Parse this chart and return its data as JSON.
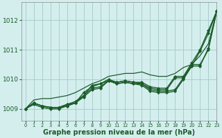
{
  "bg_color": "#d4eeee",
  "grid_color": "#aacccc",
  "line_color": "#1a5c28",
  "marker_color": "#1a5c28",
  "xlabel": "Graphe pression niveau de la mer (hPa)",
  "xlabel_fontsize": 7.0,
  "xlim": [
    -0.5,
    23
  ],
  "ylim": [
    1008.6,
    1012.6
  ],
  "yticks": [
    1009,
    1010,
    1011,
    1012
  ],
  "xticks": [
    0,
    1,
    2,
    3,
    4,
    5,
    6,
    7,
    8,
    9,
    10,
    11,
    12,
    13,
    14,
    15,
    16,
    17,
    18,
    19,
    20,
    21,
    22,
    23
  ],
  "series": [
    {
      "y": [
        1009.0,
        1009.2,
        1009.1,
        1009.05,
        1009.05,
        1009.1,
        1009.2,
        1009.55,
        1009.75,
        1009.85,
        1009.95,
        1009.85,
        1009.9,
        1009.85,
        1009.85,
        1009.65,
        1009.6,
        1009.6,
        1009.65,
        1010.05,
        1010.45,
        1010.95,
        1011.55,
        1012.3
      ],
      "has_markers": true,
      "lw": 1.0
    },
    {
      "y": [
        1009.0,
        1009.15,
        1009.05,
        1009.0,
        1009.0,
        1009.1,
        1009.2,
        1009.4,
        1009.65,
        1009.7,
        1009.95,
        1009.85,
        1009.9,
        1009.85,
        1009.8,
        1009.6,
        1009.55,
        1009.55,
        1009.6,
        1010.0,
        1010.45,
        1010.45,
        1011.05,
        1012.3
      ],
      "has_markers": true,
      "lw": 1.0
    },
    {
      "y": [
        1009.0,
        1009.2,
        1009.1,
        1009.05,
        1009.05,
        1009.15,
        1009.2,
        1009.45,
        1009.8,
        1009.85,
        1010.0,
        1009.9,
        1009.95,
        1009.9,
        1009.85,
        1009.7,
        1009.65,
        1009.65,
        1010.05,
        1010.05,
        1010.5,
        1010.5,
        1011.0,
        1012.3
      ],
      "has_markers": true,
      "lw": 1.0
    },
    {
      "y": [
        1009.0,
        1009.2,
        1009.1,
        1009.05,
        1009.05,
        1009.15,
        1009.25,
        1009.45,
        1009.7,
        1009.75,
        1009.95,
        1009.9,
        1009.95,
        1009.9,
        1009.9,
        1009.75,
        1009.7,
        1009.7,
        1010.1,
        1010.1,
        1010.55,
        1011.0,
        1011.65,
        1012.3
      ],
      "has_markers": true,
      "lw": 1.0
    },
    {
      "y": [
        1009.0,
        1009.3,
        1009.35,
        1009.35,
        1009.4,
        1009.45,
        1009.55,
        1009.7,
        1009.85,
        1009.95,
        1010.1,
        1010.15,
        1010.2,
        1010.2,
        1010.25,
        1010.15,
        1010.1,
        1010.1,
        1010.2,
        1010.4,
        1010.5,
        1010.8,
        1011.2,
        1012.3
      ],
      "has_markers": false,
      "lw": 0.9
    }
  ]
}
